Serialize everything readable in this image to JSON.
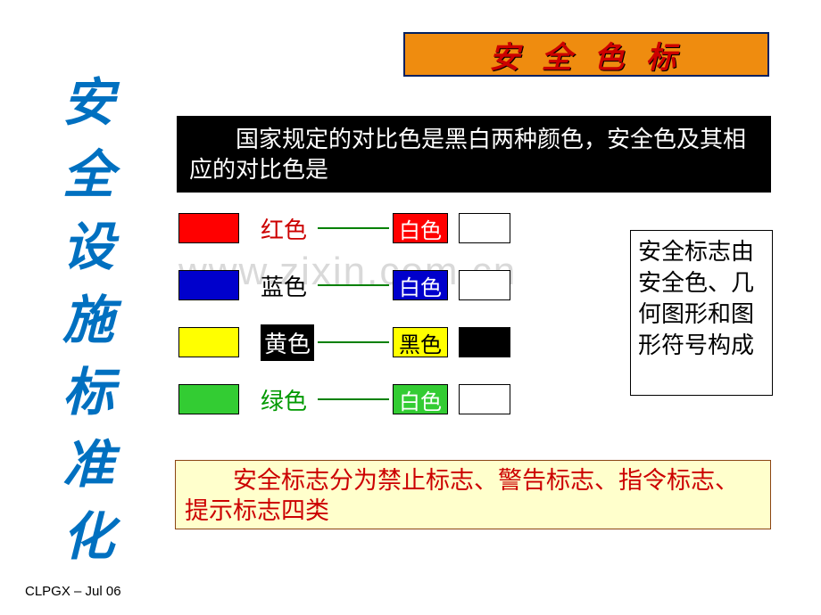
{
  "vertical_title": [
    "安",
    "全",
    "设",
    "施",
    "标",
    "准",
    "化"
  ],
  "header": {
    "text": "安 全 色 标",
    "bg": "#ef8c0f",
    "border": "#002060",
    "color": "#cc0000"
  },
  "intro": {
    "text": "国家规定的对比色是黑白两种颜色，安全色及其相应的对比色是",
    "bg": "#000000",
    "fg": "#ffffff"
  },
  "rows": [
    {
      "swatch": "#ff0000",
      "left_label": "红色",
      "left_label_color": "#cc0000",
      "pair_bg": "#ff0000",
      "pair_fg": "#ffffff",
      "pair_label": "白色",
      "pair2_bg": "#ffffff"
    },
    {
      "swatch": "#0000cc",
      "left_label": "蓝色",
      "left_label_color": "#000000",
      "pair_bg": "#0000cc",
      "pair_fg": "#ffffff",
      "pair_label": "白色",
      "pair2_bg": "#ffffff"
    },
    {
      "swatch": "#ffff00",
      "left_label": "黄色",
      "left_label_color": "#ffffff",
      "left_label_bg": "#000000",
      "pair_bg": "#ffff00",
      "pair_fg": "#000000",
      "pair_label": "黑色",
      "pair2_bg": "#000000"
    },
    {
      "swatch": "#33cc33",
      "left_label": "绿色",
      "left_label_color": "#009900",
      "pair_bg": "#33cc33",
      "pair_fg": "#ffffff",
      "pair_label": "白色",
      "pair2_bg": "#ffffff"
    }
  ],
  "info_box": "安全标志由安全色、几何图形和图形符号构成",
  "bottom_box": "安全标志分为禁止标志、警告标志、指令标志、提示标志四类",
  "footer": "CLPGX – Jul 06",
  "watermark": "www.zixin.com.cn",
  "styles": {
    "page_bg": "#ffffff",
    "title_color": "#0070c0",
    "connector_color": "#008000",
    "bottom_bg": "#ffffcc",
    "bottom_border": "#8b4513",
    "bottom_fg": "#cc0000"
  }
}
